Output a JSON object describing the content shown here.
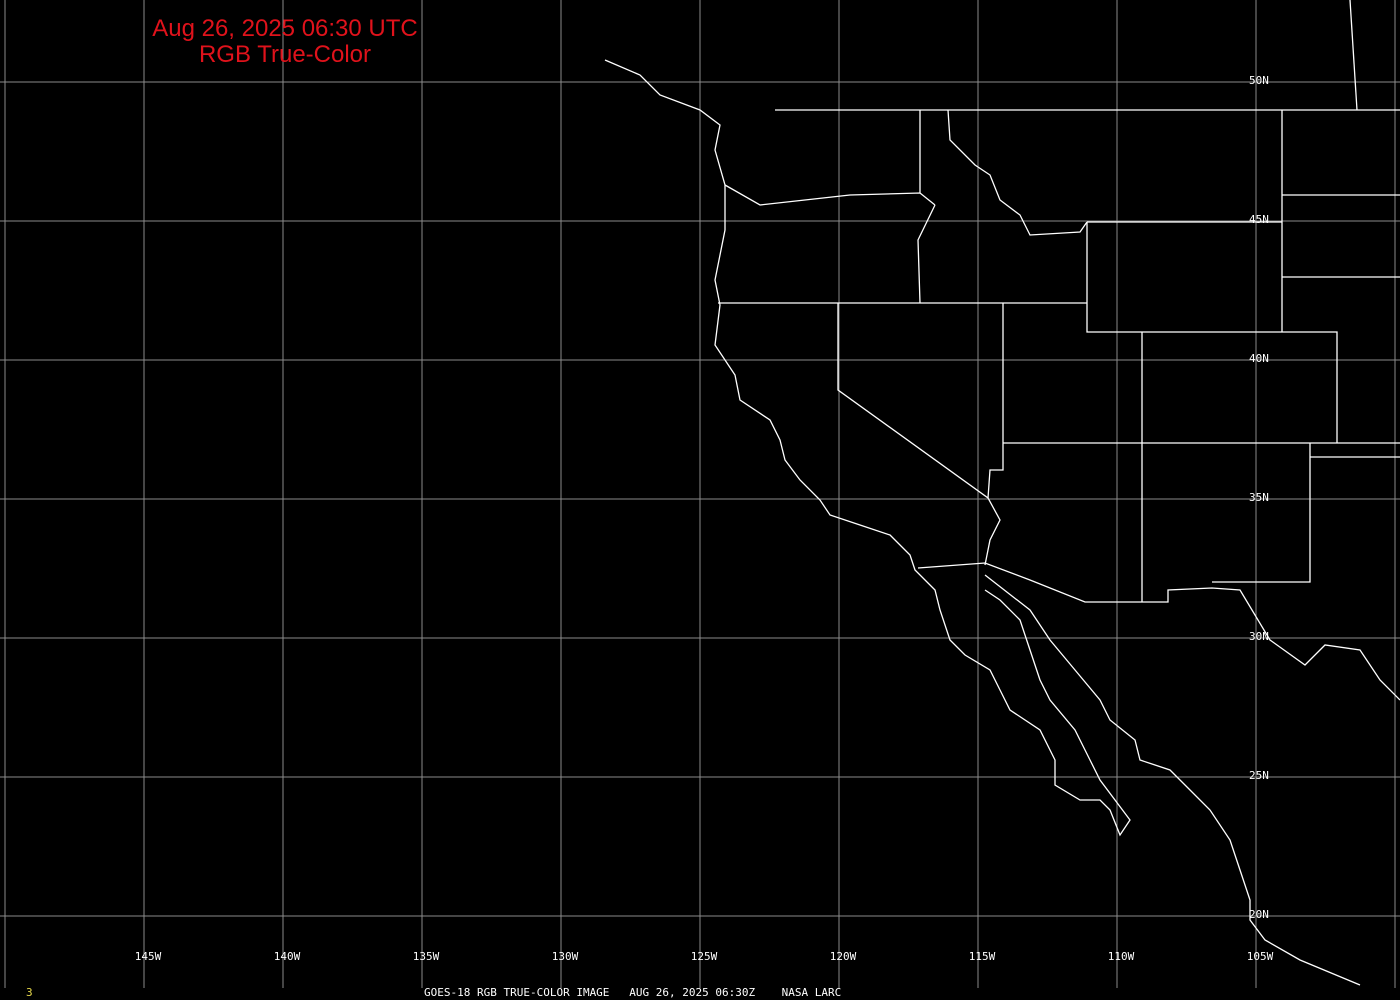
{
  "title": {
    "line1": "Aug 26, 2025 06:30 UTC",
    "line2": "RGB True-Color"
  },
  "longitude_labels": [
    "145W",
    "140W",
    "135W",
    "130W",
    "125W",
    "120W",
    "115W",
    "110W",
    "105W"
  ],
  "latitude_labels": [
    "50N",
    "45N",
    "40N",
    "35N",
    "30N",
    "25N",
    "20N"
  ],
  "footer": {
    "text": "GOES-18 RGB TRUE-COLOR IMAGE   AUG 26, 2025 06:30Z    NASA LARC",
    "frame_number": "3"
  },
  "colors": {
    "background": "#000000",
    "title": "#e0121b",
    "grid": "#8a8a8a",
    "borders": "#ffffff",
    "frame_number": "#e6d84a"
  }
}
